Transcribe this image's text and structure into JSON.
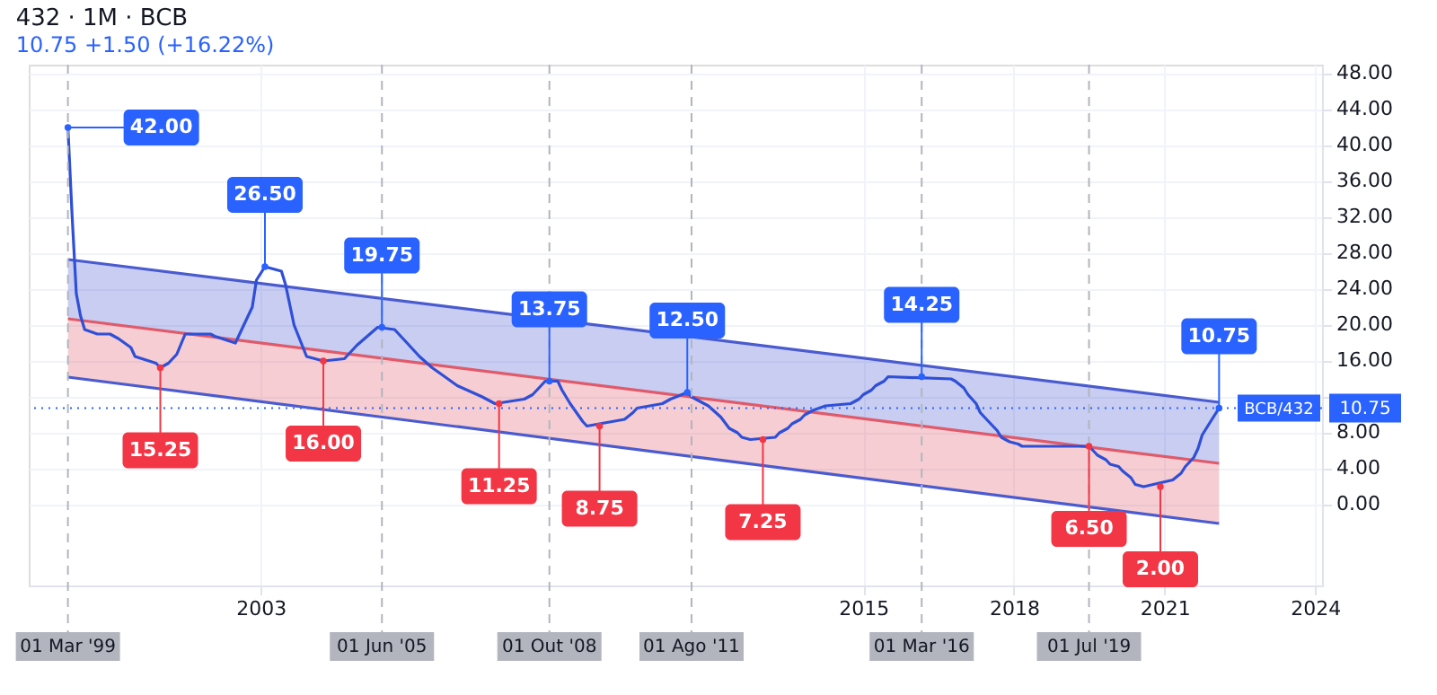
{
  "chart_data": {
    "type": "line",
    "title": "432 · 1M · BCB",
    "subtitle": "10.75 +1.50 (+16.22%)",
    "xlim": [
      "1998-05-20",
      "2024-02-20"
    ],
    "xticks": [
      {
        "value": "2003-01-01",
        "label": "2003"
      },
      {
        "value": "2015-01-01",
        "label": "2015"
      },
      {
        "value": "2018-01-01",
        "label": "2018"
      },
      {
        "value": "2021-01-01",
        "label": "2021"
      },
      {
        "value": "2024-01-01",
        "label": "2024"
      }
    ],
    "ylim": [
      -9,
      49
    ],
    "yticks": [
      {
        "value": 0,
        "label": "0.00"
      },
      {
        "value": 4,
        "label": "4.00"
      },
      {
        "value": 8,
        "label": "8.00"
      },
      {
        "value": 12,
        "label": null
      },
      {
        "value": 16,
        "label": "16.00"
      },
      {
        "value": 20,
        "label": "20.00"
      },
      {
        "value": 24,
        "label": "24.00"
      },
      {
        "value": 28,
        "label": "28.00"
      },
      {
        "value": 32,
        "label": "32.00"
      },
      {
        "value": 36,
        "label": "36.00"
      },
      {
        "value": 40,
        "label": "40.00"
      },
      {
        "value": 44,
        "label": "44.00"
      },
      {
        "value": 48,
        "label": "48.00"
      }
    ],
    "grid": true,
    "series": [
      {
        "color": "#4a5bd0",
        "x": [
          "1999-03-01",
          "2022-02-01"
        ],
        "values": [
          27.3,
          11.4
        ],
        "lower": [
          20.7,
          4.6
        ],
        "upper": [
          27.3,
          11.4
        ]
      },
      {
        "color": "#e05a6a",
        "x": [
          "1999-03-01",
          "2022-02-01"
        ],
        "values": [
          20.7,
          4.6
        ],
        "lower": [
          14.2,
          -2.1
        ],
        "upper": [
          20.7,
          4.6
        ]
      },
      {
        "color": "#4a5bd0",
        "x": [
          "1999-03-01",
          "2022-02-01"
        ],
        "values": [
          14.2,
          -2.1
        ]
      },
      {
        "color": "#2f4fd6",
        "x": [
          "1999-03-01",
          "1999-04-01",
          "1999-05-01",
          "1999-06-01",
          "1999-07-01",
          "1999-10-01",
          "2000-01-01",
          "2000-03-01",
          "2000-06-01",
          "2000-07-01",
          "2000-12-01",
          "2001-01-01",
          "2001-03-01",
          "2001-05-01",
          "2001-07-01",
          "2002-01-01",
          "2002-02-01",
          "2002-07-01",
          "2002-10-01",
          "2002-11-01",
          "2002-12-01",
          "2003-02-01",
          "2003-06-01",
          "2003-07-01",
          "2003-09-01",
          "2003-12-01",
          "2004-04-01",
          "2004-09-01",
          "2004-12-01",
          "2005-05-01",
          "2005-09-01",
          "2005-12-01",
          "2006-03-01",
          "2006-06-01",
          "2006-09-01",
          "2006-12-01",
          "2007-06-01",
          "2007-09-01",
          "2008-04-01",
          "2008-06-01",
          "2008-09-01",
          "2008-12-01",
          "2009-01-01",
          "2009-03-01",
          "2009-06-01",
          "2009-07-01",
          "2010-04-01",
          "2010-06-01",
          "2010-07-01",
          "2011-01-01",
          "2011-03-01",
          "2011-07-01",
          "2011-08-01",
          "2011-10-01",
          "2011-12-01",
          "2012-03-01",
          "2012-05-01",
          "2012-07-01",
          "2012-08-01",
          "2012-10-01",
          "2013-04-01",
          "2013-05-01",
          "2013-07-01",
          "2013-08-01",
          "2013-10-01",
          "2013-11-01",
          "2014-01-01",
          "2014-04-01",
          "2014-10-01",
          "2014-12-01",
          "2015-01-01",
          "2015-03-01",
          "2015-04-01",
          "2015-06-01",
          "2015-07-01",
          "2016-10-01",
          "2016-11-01",
          "2017-01-01",
          "2017-02-01",
          "2017-04-01",
          "2017-05-01",
          "2017-07-01",
          "2017-09-01",
          "2017-10-01",
          "2017-12-01",
          "2018-02-01",
          "2018-03-01",
          "2019-07-01",
          "2019-08-01",
          "2019-09-01",
          "2019-11-01",
          "2019-12-01",
          "2020-02-01",
          "2020-03-01",
          "2020-05-01",
          "2020-06-01",
          "2020-08-01",
          "2021-03-01",
          "2021-05-01",
          "2021-06-01",
          "2021-08-01",
          "2021-09-01",
          "2021-10-01",
          "2021-12-01",
          "2022-02-01"
        ],
        "values": [
          42,
          32,
          23.5,
          21,
          19.5,
          19,
          19,
          18.5,
          17.5,
          16.5,
          15.75,
          15.25,
          15.75,
          16.75,
          19,
          19,
          18.75,
          18,
          21,
          22,
          25,
          26.5,
          26,
          24.5,
          20,
          16.5,
          16,
          16.25,
          17.75,
          19.75,
          19.5,
          18,
          16.5,
          15.25,
          14.25,
          13.25,
          12,
          11.25,
          11.75,
          12.25,
          13.75,
          13.75,
          12.75,
          11.25,
          9.25,
          8.75,
          9.5,
          10.25,
          10.75,
          11.25,
          11.75,
          12.5,
          12,
          11.5,
          11,
          9.75,
          8.5,
          8,
          7.5,
          7.25,
          7.5,
          8,
          8.5,
          9,
          9.5,
          10,
          10.5,
          11,
          11.25,
          11.75,
          12.25,
          12.75,
          13.25,
          13.75,
          14.25,
          14,
          13.75,
          13,
          12.25,
          11.25,
          10.25,
          9.25,
          8.25,
          7.5,
          7,
          6.75,
          6.5,
          6.5,
          6,
          5.5,
          5,
          4.5,
          4.25,
          3.75,
          3,
          2.25,
          2,
          2.75,
          3.5,
          4.25,
          5.25,
          6.25,
          7.75,
          9.25,
          10.75
        ]
      }
    ],
    "ref_lines": [
      {
        "axis": "x",
        "value": "1999-03-01",
        "label": "01 Mar '99",
        "color": "#b2b5be",
        "line_style": "dashed"
      },
      {
        "axis": "x",
        "value": "2005-06-01",
        "label": "01 Jun '05",
        "color": "#b2b5be",
        "line_style": "dashed"
      },
      {
        "axis": "x",
        "value": "2008-10-01",
        "label": "01 Out '08",
        "color": "#b2b5be",
        "line_style": "dashed"
      },
      {
        "axis": "x",
        "value": "2011-08-01",
        "label": "01 Ago '11",
        "color": "#b2b5be",
        "line_style": "dashed"
      },
      {
        "axis": "x",
        "value": "2016-03-01",
        "label": "01 Mar '16",
        "color": "#b2b5be",
        "line_style": "dashed"
      },
      {
        "axis": "x",
        "value": "2019-07-01",
        "label": "01 Jul '19",
        "color": "#b2b5be",
        "line_style": "dashed"
      },
      {
        "axis": "y",
        "value": 10.75,
        "label": "BCB/432",
        "color": "#2962ff",
        "line_style": "dotted"
      }
    ],
    "annotations": [
      {
        "text": "42.00",
        "x": "1999-03-01",
        "y": 42
      },
      {
        "text": "15.25",
        "x": "2001-01-01",
        "y": 15.25
      },
      {
        "text": "26.50",
        "x": "2003-02-01",
        "y": 26.5
      },
      {
        "text": "16.00",
        "x": "2004-04-01",
        "y": 16
      },
      {
        "text": "19.75",
        "x": "2005-06-01",
        "y": 19.75
      },
      {
        "text": "11.25",
        "x": "2007-10-01",
        "y": 11.25
      },
      {
        "text": "13.75",
        "x": "2008-10-01",
        "y": 13.75
      },
      {
        "text": "8.75",
        "x": "2009-10-01",
        "y": 8.75
      },
      {
        "text": "12.50",
        "x": "2011-07-01",
        "y": 12.5
      },
      {
        "text": "7.25",
        "x": "2013-01-01",
        "y": 7.25
      },
      {
        "text": "14.25",
        "x": "2016-03-01",
        "y": 14.25
      },
      {
        "text": "6.50",
        "x": "2019-07-01",
        "y": 6.5
      },
      {
        "text": "2.00",
        "x": "2020-12-01",
        "y": 2
      },
      {
        "text": "10.75",
        "x": "2022-02-01",
        "y": 10.75
      }
    ]
  }
}
